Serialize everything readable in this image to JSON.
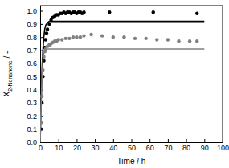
{
  "chart_data": {
    "type": "scatter",
    "x_label": "Time / h",
    "y_label": [
      {
        "text": "X"
      },
      {
        "text": "2-Nonanone",
        "sub": true
      },
      {
        "text": " / -"
      }
    ],
    "xlim": [
      0,
      100
    ],
    "xticks": [
      0,
      10,
      20,
      30,
      40,
      50,
      60,
      70,
      80,
      90,
      100
    ],
    "ylim": [
      0,
      1.04
    ],
    "yticks": [
      {
        "value": 0,
        "label": "0.0"
      },
      0.1,
      0.2,
      0.3,
      0.4,
      0.5,
      0.6,
      0.7,
      0.8,
      0.9,
      {
        "value": 1,
        "label": "1.0"
      }
    ],
    "series": [
      {
        "type": "scatter",
        "marker": "circle",
        "color": "#000000",
        "x": [
          0.5,
          1,
          1.5,
          2,
          2.5,
          3,
          3.5,
          4,
          5,
          6,
          7,
          8,
          9,
          10,
          11,
          12,
          13,
          14,
          15,
          16,
          17,
          18,
          19,
          20,
          21,
          22,
          23,
          24,
          38,
          62,
          86
        ],
        "values": [
          0.1,
          0.3,
          0.5,
          0.62,
          0.72,
          0.78,
          0.83,
          0.86,
          0.9,
          0.93,
          0.95,
          0.96,
          0.97,
          0.97,
          0.98,
          0.98,
          0.99,
          0.98,
          0.99,
          0.99,
          0.98,
          0.99,
          0.99,
          0.98,
          0.99,
          0.99,
          0.98,
          0.99,
          0.99,
          0.99,
          0.98
        ]
      },
      {
        "type": "line",
        "line_style": "solid",
        "color": "#000000",
        "x": [
          0,
          0.5,
          1,
          1.5,
          2,
          2.5,
          3,
          4,
          5,
          6,
          8,
          10,
          20,
          40,
          60,
          90
        ],
        "values": [
          0,
          0.3,
          0.55,
          0.7,
          0.8,
          0.86,
          0.89,
          0.91,
          0.92,
          0.92,
          0.92,
          0.92,
          0.92,
          0.92,
          0.92,
          0.92
        ]
      },
      {
        "type": "scatter",
        "marker": "circle",
        "color": "#808080",
        "x": [
          0.5,
          1,
          1.5,
          2,
          2.5,
          3,
          4,
          5,
          6,
          7,
          8,
          9,
          10,
          12,
          14,
          16,
          18,
          20,
          22,
          24,
          28,
          34,
          40,
          46,
          52,
          58,
          64,
          70,
          76,
          82,
          86
        ],
        "values": [
          0.15,
          0.35,
          0.55,
          0.65,
          0.69,
          0.71,
          0.73,
          0.74,
          0.75,
          0.76,
          0.77,
          0.77,
          0.78,
          0.78,
          0.79,
          0.79,
          0.8,
          0.8,
          0.8,
          0.81,
          0.82,
          0.81,
          0.8,
          0.8,
          0.79,
          0.79,
          0.78,
          0.78,
          0.77,
          0.77,
          0.77
        ]
      },
      {
        "type": "line",
        "line_style": "solid",
        "color": "#808080",
        "x": [
          0,
          0.5,
          1,
          1.5,
          2,
          2.5,
          3,
          4,
          5,
          6,
          8,
          10,
          20,
          40,
          60,
          90
        ],
        "values": [
          0,
          0.28,
          0.5,
          0.62,
          0.68,
          0.7,
          0.71,
          0.71,
          0.71,
          0.71,
          0.71,
          0.71,
          0.71,
          0.71,
          0.71,
          0.71
        ]
      }
    ]
  }
}
